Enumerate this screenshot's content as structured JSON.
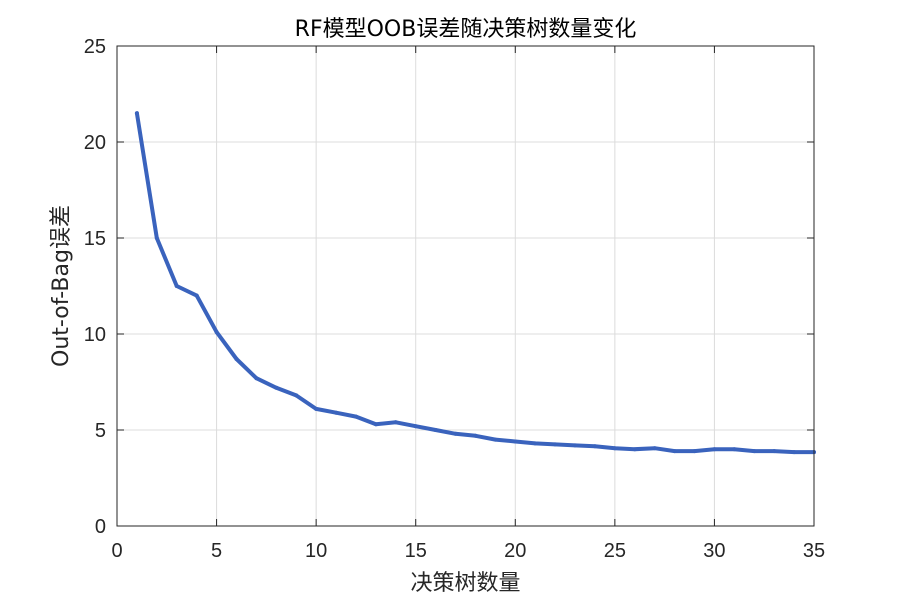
{
  "chart_data": {
    "type": "line",
    "title": "RF模型OOB误差随决策树数量变化",
    "xlabel": "决策树数量",
    "ylabel": "Out-of-Bag误差",
    "xlim": [
      0,
      35
    ],
    "ylim": [
      0,
      25
    ],
    "xticks": [
      0,
      5,
      10,
      15,
      20,
      25,
      30,
      35
    ],
    "yticks": [
      0,
      5,
      10,
      15,
      20,
      25
    ],
    "grid": true,
    "line_color": "#3a63bd",
    "x": [
      1,
      2,
      3,
      4,
      5,
      6,
      7,
      8,
      9,
      10,
      11,
      12,
      13,
      14,
      15,
      16,
      17,
      18,
      19,
      20,
      21,
      22,
      23,
      24,
      25,
      26,
      27,
      28,
      29,
      30,
      31,
      32,
      33,
      34,
      35
    ],
    "values": [
      21.5,
      15.0,
      12.5,
      12.0,
      10.1,
      8.7,
      7.7,
      7.2,
      6.8,
      6.1,
      5.9,
      5.7,
      5.3,
      5.4,
      5.2,
      5.0,
      4.8,
      4.7,
      4.5,
      4.4,
      4.3,
      4.25,
      4.2,
      4.15,
      4.05,
      4.0,
      4.05,
      3.9,
      3.9,
      4.0,
      4.0,
      3.9,
      3.9,
      3.85,
      3.85
    ]
  }
}
